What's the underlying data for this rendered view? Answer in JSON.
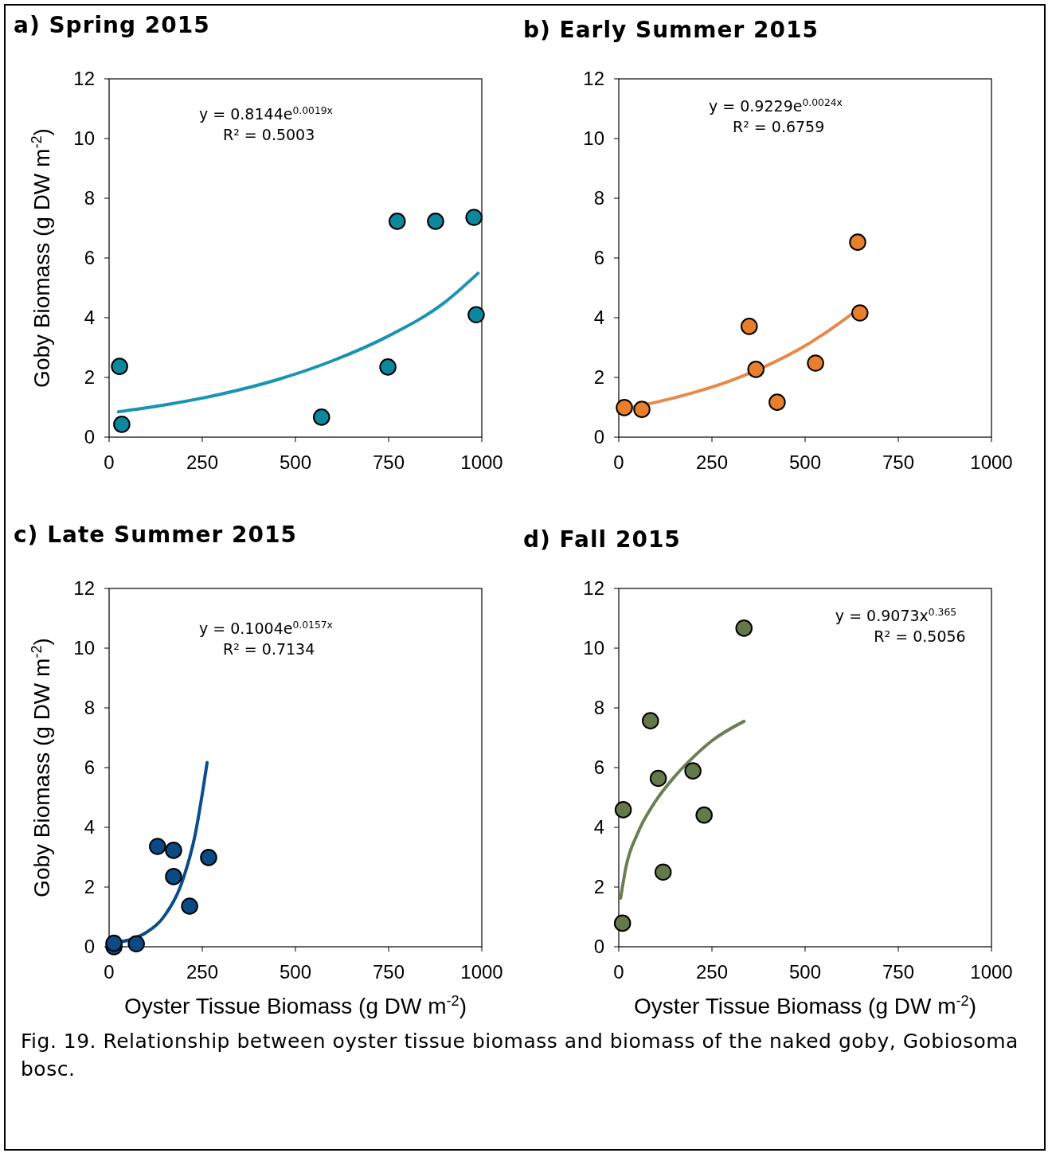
{
  "chart_data": [
    {
      "type": "scatter",
      "title": "a) Spring 2015",
      "ylabel": "Goby Biomass (g DW m$^{-2}$)",
      "xlim": [
        0,
        1000
      ],
      "xticks": [
        0,
        250,
        500,
        750,
        1000
      ],
      "ylim": [
        0,
        12
      ],
      "yticks": [
        0,
        2,
        4,
        6,
        8,
        10,
        12
      ],
      "annotations": [
        "y = 0.8144e$^{0.0019x}$",
        "R² = 0.5003"
      ],
      "series": [
        {
          "marker": "circle",
          "color": "#0e879e",
          "x": [
            28,
            34,
            570,
            748,
            773,
            876,
            979,
            985
          ],
          "values": [
            2.37,
            0.43,
            0.67,
            2.35,
            7.23,
            7.23,
            7.36,
            4.1
          ]
        },
        {
          "type": "line",
          "color": "#1a94b0",
          "x": [
            25,
            150,
            300,
            450,
            600,
            750,
            900,
            990
          ],
          "values": [
            0.85,
            1.08,
            1.44,
            1.92,
            2.56,
            3.39,
            4.51,
            5.49
          ]
        }
      ]
    },
    {
      "type": "scatter",
      "title": "b) Early Summer 2015",
      "xlim": [
        0,
        1000
      ],
      "xticks": [
        0,
        250,
        500,
        750,
        1000
      ],
      "ylim": [
        0,
        12
      ],
      "yticks": [
        0,
        2,
        4,
        6,
        8,
        10,
        12
      ],
      "annotations": [
        "y = 0.9229e$^{0.0024x}$",
        "R² = 0.6759"
      ],
      "series": [
        {
          "marker": "circle",
          "color": "#e97e2c",
          "x": [
            15,
            62,
            350,
            368,
            425,
            528,
            641,
            647
          ],
          "values": [
            0.99,
            0.93,
            3.71,
            2.27,
            1.17,
            2.48,
            6.53,
            4.16
          ]
        },
        {
          "type": "line",
          "color": "#e8884a",
          "x": [
            15,
            100,
            200,
            300,
            400,
            500,
            600,
            645
          ],
          "values": [
            0.96,
            1.17,
            1.49,
            1.89,
            2.41,
            3.06,
            3.89,
            4.32
          ]
        }
      ]
    },
    {
      "type": "scatter",
      "title": "c) Late Summer 2015",
      "xlabel": "Oyster Tissue Biomass (g DW m$^{-2}$)",
      "ylabel": "Goby Biomass (g DW m$^{-2}$)",
      "xlim": [
        0,
        1000
      ],
      "xticks": [
        0,
        250,
        500,
        750,
        1000
      ],
      "ylim": [
        0,
        12
      ],
      "yticks": [
        0,
        2,
        4,
        6,
        8,
        10,
        12
      ],
      "annotations": [
        "y = 0.1004e$^{0.0157x}$",
        "R² = 0.7134"
      ],
      "series": [
        {
          "marker": "circle",
          "color": "#0b4a85",
          "x": [
            13,
            13,
            73,
            130,
            173,
            173,
            216,
            267
          ],
          "values": [
            0.0,
            0.12,
            0.1,
            3.36,
            3.23,
            2.35,
            1.36,
            2.99
          ]
        },
        {
          "type": "line",
          "color": "#0b4d8c",
          "x": [
            13,
            50,
            100,
            150,
            200,
            230,
            263
          ],
          "values": [
            0.12,
            0.22,
            0.48,
            1.06,
            2.32,
            3.7,
            6.17
          ]
        }
      ]
    },
    {
      "type": "scatter",
      "title": "d) Fall 2015",
      "xlabel": "Oyster Tissue Biomass (g DW m$^{-2}$)",
      "xlim": [
        0,
        1000
      ],
      "xticks": [
        0,
        250,
        500,
        750,
        1000
      ],
      "ylim": [
        0,
        12
      ],
      "yticks": [
        0,
        2,
        4,
        6,
        8,
        10,
        12
      ],
      "annotations": [
        "y = 0.9073x$^{0.365}$",
        "R² = 0.5056",
        "Fig. 19.  Relationship between oyster tissue biomass and biomass of the naked goby, Gobiosoma bosc."
      ],
      "series": [
        {
          "marker": "circle",
          "color": "#64794a",
          "x": [
            10,
            12,
            85,
            106,
            119,
            199,
            229,
            336
          ],
          "values": [
            0.79,
            4.59,
            7.57,
            5.64,
            2.5,
            5.89,
            4.41,
            10.67
          ]
        },
        {
          "type": "line",
          "color": "#6b7f52",
          "x": [
            5,
            20,
            50,
            100,
            150,
            200,
            250,
            336
          ],
          "values": [
            1.63,
            2.71,
            3.78,
            4.9,
            5.7,
            6.35,
            6.9,
            7.55
          ]
        }
      ]
    }
  ]
}
